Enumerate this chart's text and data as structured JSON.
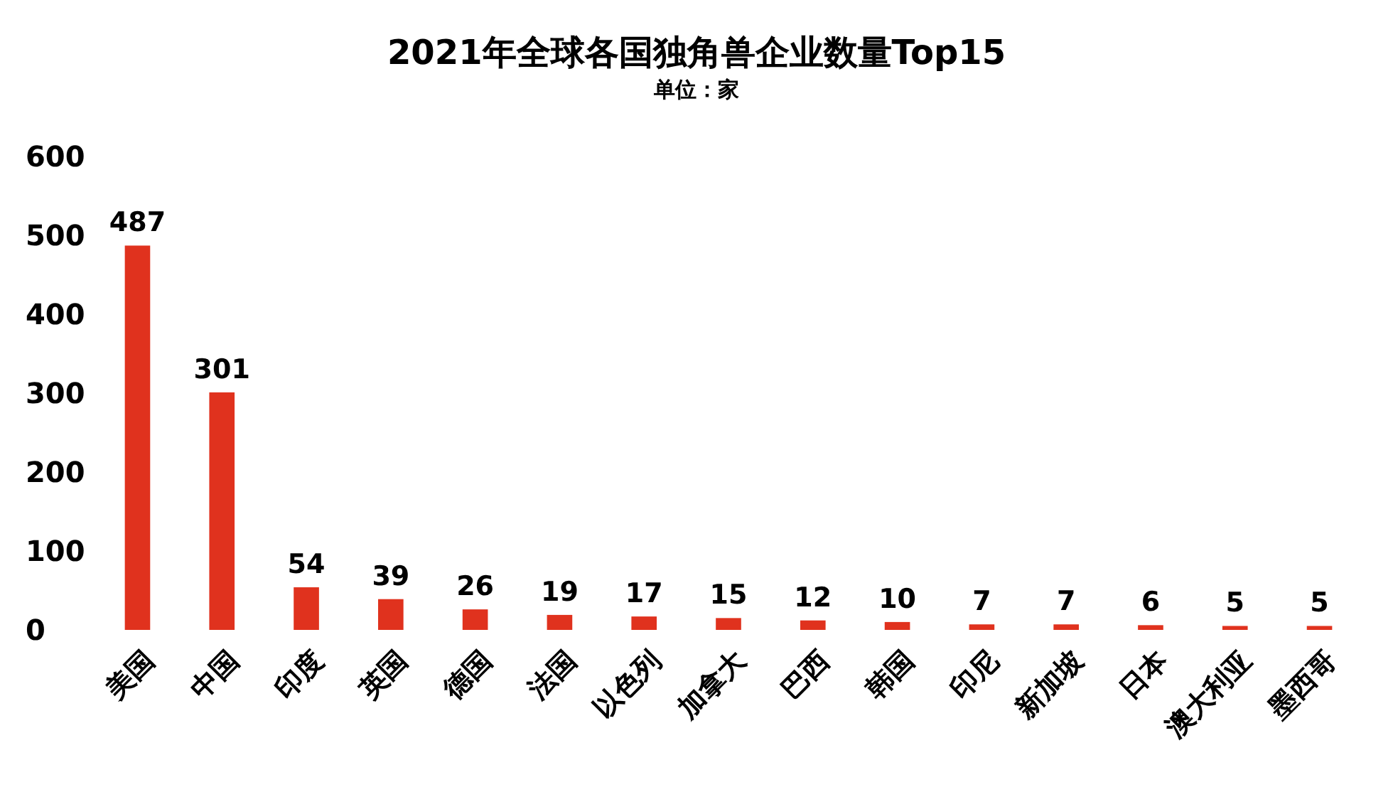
{
  "chart_data": {
    "type": "bar",
    "title": "2021年全球各国独角兽企业数量Top15",
    "subtitle": "单位：家",
    "categories": [
      "美国",
      "中国",
      "印度",
      "英国",
      "德国",
      "法国",
      "以色列",
      "加拿大",
      "巴西",
      "韩国",
      "印尼",
      "新加坡",
      "日本",
      "澳大利亚",
      "墨西哥"
    ],
    "values": [
      487,
      301,
      54,
      39,
      26,
      19,
      17,
      15,
      12,
      10,
      7,
      7,
      6,
      5,
      5
    ],
    "color": "#e0321e",
    "ylim": [
      0,
      600
    ],
    "yticks": [
      0,
      100,
      200,
      300,
      400,
      500,
      600
    ],
    "grid": false,
    "data_labels": true
  }
}
